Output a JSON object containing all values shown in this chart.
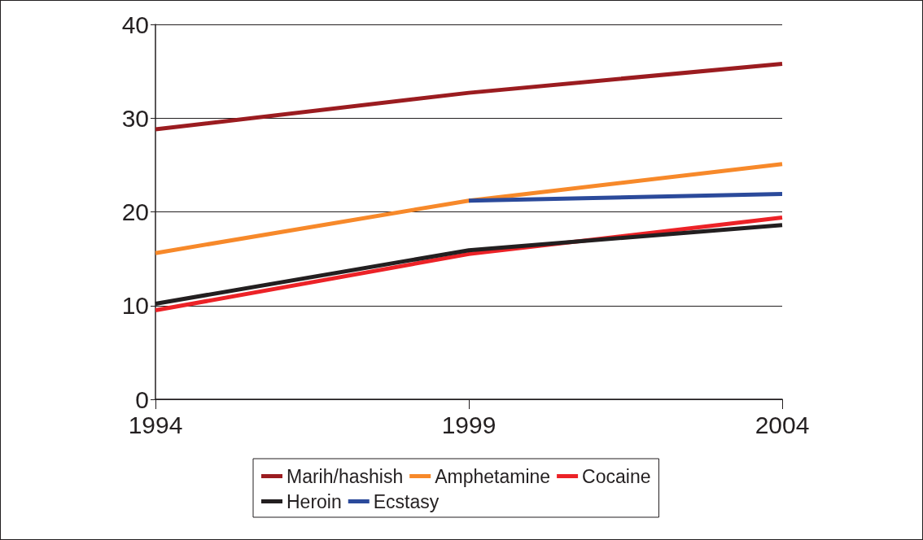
{
  "chart_data": {
    "type": "line",
    "x": [
      1994,
      1999,
      2004
    ],
    "xlim": [
      1994,
      2004
    ],
    "xticks": [
      1994,
      1999,
      2004
    ],
    "ylim": [
      0,
      40
    ],
    "yticks": [
      0,
      10,
      20,
      30,
      40
    ],
    "grid": "y",
    "legend": "bottom",
    "marker": "none",
    "line_style": "solid",
    "series": [
      {
        "name": "Marih/hashish",
        "color": "#9b1c20",
        "values": [
          28.8,
          32.7,
          35.8
        ]
      },
      {
        "name": "Amphetamine",
        "color": "#f7892a",
        "values": [
          15.6,
          21.2,
          25.1
        ]
      },
      {
        "name": "Cocaine",
        "color": "#ec2227",
        "values": [
          9.5,
          15.5,
          19.4
        ]
      },
      {
        "name": "Heroin",
        "color": "#231f20",
        "values": [
          10.2,
          15.9,
          18.6
        ]
      },
      {
        "name": "Ecstasy",
        "color": "#2b4a9b",
        "values": [
          null,
          21.2,
          21.9
        ]
      }
    ]
  }
}
